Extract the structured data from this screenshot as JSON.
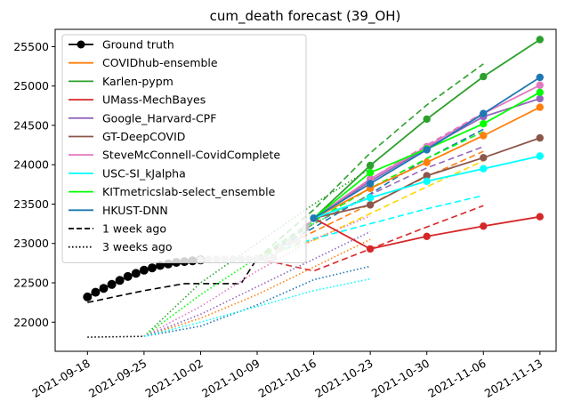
{
  "chart_data": {
    "type": "line",
    "title": "cum_death forecast (39_OH)",
    "xlabel": "",
    "ylabel": "",
    "xlim": [
      "2021-09-14",
      "2021-11-15"
    ],
    "ylim": [
      21630,
      25720
    ],
    "grid": false,
    "legend_position": "top-left",
    "x_ticks": [
      "2021-09-18",
      "2021-09-25",
      "2021-10-02",
      "2021-10-09",
      "2021-10-16",
      "2021-10-23",
      "2021-10-30",
      "2021-11-06",
      "2021-11-13"
    ],
    "y_ticks": [
      22000,
      22500,
      23000,
      23500,
      24000,
      24500,
      25000,
      25500
    ],
    "legend": [
      {
        "label": "Ground truth",
        "color": "#000000",
        "style": "solid",
        "marker": true
      },
      {
        "label": "COVIDhub-ensemble",
        "color": "#ff7f0e",
        "style": "solid",
        "marker": false
      },
      {
        "label": "Karlen-pypm",
        "color": "#2ca02c",
        "style": "solid",
        "marker": false
      },
      {
        "label": "UMass-MechBayes",
        "color": "#d62728",
        "style": "solid",
        "marker": false
      },
      {
        "label": "Google_Harvard-CPF",
        "color": "#9467bd",
        "style": "solid",
        "marker": false
      },
      {
        "label": "GT-DeepCOVID",
        "color": "#8c564b",
        "style": "solid",
        "marker": false
      },
      {
        "label": "SteveMcConnell-CovidComplete",
        "color": "#e377c2",
        "style": "solid",
        "marker": false
      },
      {
        "label": "USC-SI_kJalpha",
        "color": "#00ffff",
        "style": "solid",
        "marker": false
      },
      {
        "label": "KITmetricslab-select_ensemble",
        "color": "#00ff00",
        "style": "solid",
        "marker": false
      },
      {
        "label": "HKUST-DNN",
        "color": "#1f77b4",
        "style": "solid",
        "marker": false
      },
      {
        "label": "1 week ago",
        "color": "#000000",
        "style": "dashed",
        "marker": false
      },
      {
        "label": "3 weeks ago",
        "color": "#000000",
        "style": "dotted",
        "marker": false
      }
    ],
    "series": [
      {
        "name": "Ground truth",
        "color": "#000000",
        "style": "solid",
        "marker": true,
        "x": [
          "2021-09-18",
          "2021-09-19",
          "2021-09-20",
          "2021-09-21",
          "2021-09-22",
          "2021-09-23",
          "2021-09-24",
          "2021-09-25",
          "2021-09-26",
          "2021-09-27",
          "2021-09-28",
          "2021-09-29",
          "2021-09-30",
          "2021-10-01",
          "2021-10-02"
        ],
        "y": [
          22320,
          22380,
          22430,
          22480,
          22530,
          22580,
          22620,
          22660,
          22690,
          22720,
          22740,
          22760,
          22770,
          22780,
          22790
        ]
      },
      {
        "name": "Ground truth (recent, grey)",
        "color": "#c0c0c0",
        "style": "solid",
        "marker": true,
        "x": [
          "2021-10-02",
          "2021-10-03",
          "2021-10-04",
          "2021-10-05",
          "2021-10-06",
          "2021-10-07",
          "2021-10-08",
          "2021-10-09",
          "2021-10-10",
          "2021-10-11",
          "2021-10-12",
          "2021-10-13",
          "2021-10-14",
          "2021-10-15",
          "2021-10-16"
        ],
        "y": [
          22790,
          22800,
          22800,
          22800,
          22800,
          22800,
          22800,
          22810,
          22810,
          22820,
          22950,
          23010,
          23030,
          23200,
          23320
        ]
      },
      {
        "name": "COVIDhub-ensemble",
        "color": "#ff7f0e",
        "style": "solid",
        "marker": true,
        "x": [
          "2021-10-16",
          "2021-10-23",
          "2021-10-30",
          "2021-11-06",
          "2021-11-13"
        ],
        "y": [
          23320,
          23700,
          24030,
          24370,
          24730
        ]
      },
      {
        "name": "Karlen-pypm",
        "color": "#2ca02c",
        "style": "solid",
        "marker": true,
        "x": [
          "2021-10-16",
          "2021-10-23",
          "2021-10-30",
          "2021-11-06",
          "2021-11-13"
        ],
        "y": [
          23320,
          23990,
          24580,
          25120,
          25590
        ]
      },
      {
        "name": "UMass-MechBayes",
        "color": "#d62728",
        "style": "solid",
        "marker": true,
        "x": [
          "2021-10-16",
          "2021-10-23",
          "2021-10-30",
          "2021-11-06",
          "2021-11-13"
        ],
        "y": [
          23320,
          22930,
          23090,
          23220,
          23340
        ]
      },
      {
        "name": "Google_Harvard-CPF",
        "color": "#9467bd",
        "style": "solid",
        "marker": true,
        "x": [
          "2021-10-16",
          "2021-10-23",
          "2021-10-30",
          "2021-11-06",
          "2021-11-13"
        ],
        "y": [
          23320,
          23790,
          24210,
          24610,
          24840
        ]
      },
      {
        "name": "GT-DeepCOVID",
        "color": "#8c564b",
        "style": "solid",
        "marker": true,
        "x": [
          "2021-10-16",
          "2021-10-23",
          "2021-10-30",
          "2021-11-06",
          "2021-11-13"
        ],
        "y": [
          23320,
          23490,
          23860,
          24090,
          24340
        ]
      },
      {
        "name": "SteveMcConnell-CovidComplete",
        "color": "#e377c2",
        "style": "solid",
        "marker": true,
        "x": [
          "2021-10-16",
          "2021-10-23",
          "2021-10-30",
          "2021-11-06",
          "2021-11-13"
        ],
        "y": [
          23320,
          23820,
          24230,
          24650,
          25010
        ]
      },
      {
        "name": "USC-SI_kJalpha",
        "color": "#00ffff",
        "style": "solid",
        "marker": true,
        "x": [
          "2021-10-16",
          "2021-10-23",
          "2021-10-30",
          "2021-11-06",
          "2021-11-13"
        ],
        "y": [
          23320,
          23580,
          23790,
          23950,
          24110
        ]
      },
      {
        "name": "KITmetricslab-select_ensemble",
        "color": "#00ff00",
        "style": "solid",
        "marker": true,
        "x": [
          "2021-10-16",
          "2021-10-23",
          "2021-10-30",
          "2021-11-06",
          "2021-11-13"
        ],
        "y": [
          23320,
          23900,
          24200,
          24520,
          24920
        ]
      },
      {
        "name": "HKUST-DNN",
        "color": "#1f77b4",
        "style": "solid",
        "marker": true,
        "x": [
          "2021-10-16",
          "2021-10-23",
          "2021-10-30",
          "2021-11-06",
          "2021-11-13"
        ],
        "y": [
          23320,
          23760,
          24190,
          24650,
          25110
        ]
      },
      {
        "name": "1 week ago",
        "color": "#000000",
        "style": "dashed",
        "marker": false,
        "x": [
          "2021-09-18",
          "2021-09-25",
          "2021-09-30",
          "2021-10-07",
          "2021-10-09"
        ],
        "y": [
          22250,
          22400,
          22490,
          22490,
          22810
        ]
      },
      {
        "name": "Karlen-pypm (1 week ago)",
        "color": "#2ca02c",
        "style": "dashed",
        "marker": false,
        "x": [
          "2021-10-09",
          "2021-10-16",
          "2021-10-23",
          "2021-10-30",
          "2021-11-06"
        ],
        "y": [
          22810,
          23430,
          24150,
          24760,
          25280
        ]
      },
      {
        "name": "SteveMcConnell-CovidComplete (1 week ago)",
        "color": "#e377c2",
        "style": "dashed",
        "marker": false,
        "x": [
          "2021-10-09",
          "2021-10-16",
          "2021-10-23",
          "2021-10-30",
          "2021-11-06"
        ],
        "y": [
          22810,
          23300,
          23820,
          24250,
          24660
        ]
      },
      {
        "name": "HKUST-DNN (1 week ago)",
        "color": "#1f77b4",
        "style": "dashed",
        "marker": false,
        "x": [
          "2021-10-09",
          "2021-10-16",
          "2021-10-23",
          "2021-10-30",
          "2021-11-06"
        ],
        "y": [
          22810,
          23200,
          23630,
          24080,
          24450
        ]
      },
      {
        "name": "Google_Harvard-CPF (1 week ago)",
        "color": "#9467bd",
        "style": "dashed",
        "marker": false,
        "x": [
          "2021-10-09",
          "2021-10-16",
          "2021-10-23",
          "2021-10-30",
          "2021-11-06"
        ],
        "y": [
          22810,
          23250,
          23620,
          23960,
          24230
        ]
      },
      {
        "name": "KITmetricslab-select_ensemble (1 week ago)",
        "color": "#00ff00",
        "style": "dashed",
        "marker": false,
        "x": [
          "2021-10-09",
          "2021-10-16",
          "2021-10-23",
          "2021-10-30",
          "2021-11-06"
        ],
        "y": [
          22810,
          23280,
          23700,
          24080,
          24420
        ]
      },
      {
        "name": "COVIDhub-ensemble (1 week ago)",
        "color": "#ff7f0e",
        "style": "dashed",
        "marker": false,
        "x": [
          "2021-10-09",
          "2021-10-16",
          "2021-10-23",
          "2021-10-30",
          "2021-11-06"
        ],
        "y": [
          22810,
          23150,
          23500,
          23850,
          24170
        ]
      },
      {
        "name": "GT-DeepCOVID (1 week ago)",
        "color": "#ffd700",
        "style": "dashed",
        "marker": false,
        "x": [
          "2021-10-09",
          "2021-10-16",
          "2021-10-23",
          "2021-10-30",
          "2021-11-06"
        ],
        "y": [
          22810,
          23040,
          23380,
          23720,
          24050
        ]
      },
      {
        "name": "USC-SI_kJalpha (1 week ago)",
        "color": "#00ffff",
        "style": "dashed",
        "marker": false,
        "x": [
          "2021-10-09",
          "2021-10-16",
          "2021-10-23",
          "2021-10-30",
          "2021-11-06"
        ],
        "y": [
          22810,
          23060,
          23250,
          23440,
          23610
        ]
      },
      {
        "name": "UMass-MechBayes (1 week ago)",
        "color": "#d62728",
        "style": "dashed",
        "marker": false,
        "x": [
          "2021-10-09",
          "2021-10-16",
          "2021-10-23",
          "2021-10-30",
          "2021-11-06"
        ],
        "y": [
          22810,
          22650,
          22930,
          23210,
          23480
        ]
      },
      {
        "name": "3 weeks ago",
        "color": "#000000",
        "style": "dotted",
        "marker": false,
        "x": [
          "2021-09-18",
          "2021-09-25"
        ],
        "y": [
          21810,
          21820
        ]
      },
      {
        "name": "Karlen-pypm (3 weeks ago)",
        "color": "#2ca02c",
        "style": "dotted",
        "marker": false,
        "x": [
          "2021-09-25",
          "2021-10-02",
          "2021-10-09",
          "2021-10-16",
          "2021-10-23"
        ],
        "y": [
          21820,
          22500,
          23000,
          23500,
          23950
        ]
      },
      {
        "name": "KITmetricslab-select_ensemble (3 weeks ago)",
        "color": "#00ff00",
        "style": "dotted",
        "marker": false,
        "x": [
          "2021-09-25",
          "2021-10-02",
          "2021-10-09",
          "2021-10-16",
          "2021-10-23"
        ],
        "y": [
          21820,
          22350,
          22820,
          23250,
          23620
        ]
      },
      {
        "name": "SteveMcConnell-CovidComplete (3 weeks ago)",
        "color": "#e377c2",
        "style": "dotted",
        "marker": false,
        "x": [
          "2021-09-25",
          "2021-10-02",
          "2021-10-09",
          "2021-10-16",
          "2021-10-23"
        ],
        "y": [
          21820,
          22200,
          22650,
          23050,
          23350
        ]
      },
      {
        "name": "COVIDhub-ensemble (3 weeks ago)",
        "color": "#ff7f0e",
        "style": "dotted",
        "marker": false,
        "x": [
          "2021-09-25",
          "2021-10-02",
          "2021-10-09",
          "2021-10-16",
          "2021-10-23"
        ],
        "y": [
          21820,
          22050,
          22350,
          22700,
          23050
        ]
      },
      {
        "name": "HKUST-DNN (3 weeks ago)",
        "color": "#1f77b4",
        "style": "dotted",
        "marker": false,
        "x": [
          "2021-09-25",
          "2021-10-02",
          "2021-10-09",
          "2021-10-16",
          "2021-10-23"
        ],
        "y": [
          21820,
          21950,
          22220,
          22540,
          22710
        ]
      },
      {
        "name": "Google_Harvard-CPF (3 weeks ago)",
        "color": "#9467bd",
        "style": "dotted",
        "marker": false,
        "x": [
          "2021-09-25",
          "2021-10-02",
          "2021-10-09",
          "2021-10-16",
          "2021-10-23"
        ],
        "y": [
          21820,
          22100,
          22450,
          22800,
          23150
        ]
      },
      {
        "name": "USC-SI_kJalpha (3 weeks ago)",
        "color": "#00ffff",
        "style": "dotted",
        "marker": false,
        "x": [
          "2021-09-25",
          "2021-10-02",
          "2021-10-09",
          "2021-10-16",
          "2021-10-23"
        ],
        "y": [
          21820,
          22000,
          22200,
          22400,
          22550
        ]
      }
    ]
  }
}
